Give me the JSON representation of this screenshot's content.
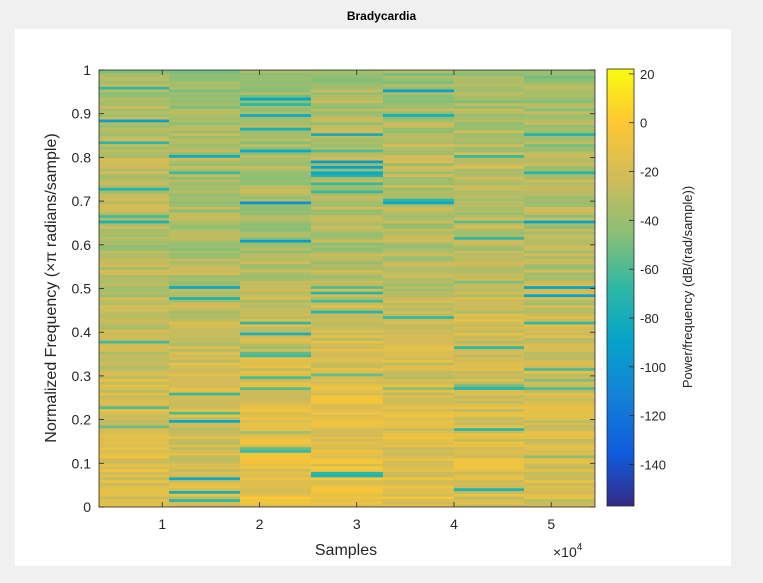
{
  "window": {
    "title": "Bradycardia"
  },
  "colors": {
    "background": "#f0f0f0",
    "panel": "#ffffff",
    "axis": "#262626"
  },
  "chart_data": {
    "type": "heatmap",
    "title": "Bradycardia",
    "xlabel": "Samples",
    "xlabel_exponent": "×10",
    "xlabel_exponent_power": "4",
    "ylabel": "Normalized Frequency (×π radians/sample)",
    "colorbar_label": "Power/frequency (dB/(rad/sample))",
    "xlim": [
      0.35,
      5.45
    ],
    "ylim": [
      0,
      1
    ],
    "clim": [
      -157,
      22
    ],
    "x_ticks": [
      1,
      2,
      3,
      4,
      5
    ],
    "x_tick_labels": [
      "1",
      "2",
      "3",
      "4",
      "5"
    ],
    "y_ticks": [
      0,
      0.1,
      0.2,
      0.3,
      0.4,
      0.5,
      0.6,
      0.7,
      0.8,
      0.9,
      1
    ],
    "y_tick_labels": [
      "0",
      "0.1",
      "0.2",
      "0.3",
      "0.4",
      "0.5",
      "0.6",
      "0.7",
      "0.8",
      "0.9",
      "1"
    ],
    "colorbar_ticks": [
      20,
      0,
      -20,
      -40,
      -60,
      -80,
      -100,
      -120,
      -140
    ],
    "colorbar_tick_labels": [
      "20",
      "0",
      "-20",
      "-40",
      "-60",
      "-80",
      "-100",
      "-120",
      "-140"
    ],
    "time_bins": [
      {
        "x0": 0.35,
        "x1": 1.07
      },
      {
        "x0": 1.07,
        "x1": 1.8
      },
      {
        "x0": 1.8,
        "x1": 2.53
      },
      {
        "x0": 2.53,
        "x1": 3.27
      },
      {
        "x0": 3.27,
        "x1": 4.0
      },
      {
        "x0": 4.0,
        "x1": 4.72
      },
      {
        "x0": 4.72,
        "x1": 5.45
      }
    ],
    "power_profile": [
      {
        "freq": 0.0,
        "levels": [
          -18,
          -20,
          -12,
          -10,
          -14,
          -16,
          -18
        ]
      },
      {
        "freq": 0.2,
        "levels": [
          -18,
          -20,
          -12,
          -12,
          -16,
          -18,
          -20
        ]
      },
      {
        "freq": 0.4,
        "levels": [
          -26,
          -24,
          -22,
          -22,
          -24,
          -22,
          -24
        ]
      },
      {
        "freq": 0.6,
        "levels": [
          -34,
          -36,
          -36,
          -34,
          -32,
          -32,
          -34
        ]
      },
      {
        "freq": 0.8,
        "levels": [
          -28,
          -34,
          -36,
          -30,
          -30,
          -28,
          -30
        ]
      },
      {
        "freq": 1.0,
        "levels": [
          -40,
          -42,
          -44,
          -40,
          -42,
          -40,
          -42
        ]
      }
    ],
    "band_count": 160,
    "band_variation_db": 11,
    "dropout_rate": 0.07,
    "dropout_depth_db": -60
  }
}
